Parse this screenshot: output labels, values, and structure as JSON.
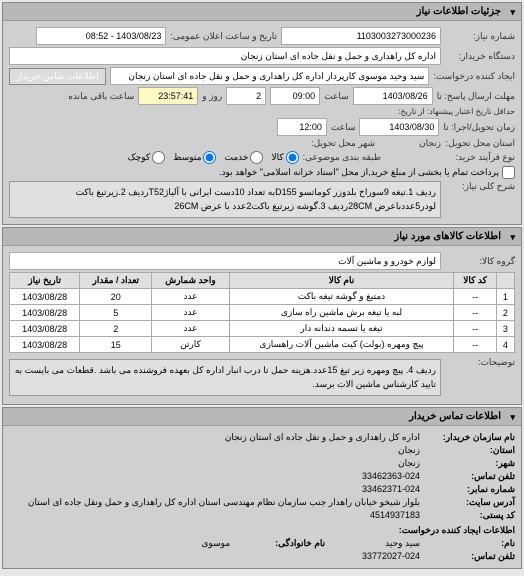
{
  "main_header": "جزئیات اطلاعات نیاز",
  "basic": {
    "req_num_label": "شماره نیاز:",
    "req_num": "1103003273000236",
    "announce_label": "تاریخ و ساعت اعلان عمومی:",
    "announce_value": "1403/08/23 - 08:52",
    "buyer_label": "دستگاه خریدار:",
    "buyer_value": "اداره کل راهداری و حمل و نقل جاده ای استان زنجان",
    "requester_label": "ایجاد کننده درخواست:",
    "requester_value": "سید وحید موسوی کارپرداز اداره کل راهداری و حمل و نقل جاده ای استان زنجان",
    "contact_btn": "اطلاعات تماس خریدار",
    "deadline_label": "مهلت ارسال پاسخ: تا",
    "deadline_date": "1403/08/26",
    "time_label": "ساعت",
    "deadline_time": "09:00",
    "days_label": "روز و",
    "days_value": "2",
    "remain_time": "23:57:41",
    "remain_label": "ساعت باقی مانده",
    "validity_label": "حداقل تاریخ اعتبار پیشنهاد: از تاریخ:",
    "delivery_label": "زمان تحویل/اجرا: تا",
    "delivery_date": "1403/08/30",
    "delivery_time": "12:00",
    "place_label": "استان محل تحویل:",
    "place_value": "زنجان",
    "city_label": "شهر محل تحویل:",
    "file_label": "نوع فرآيند خرید:",
    "doc_label": "طبقه بندی موضوعی:",
    "small_radio": "کوچک",
    "medium_radio": "متوسط",
    "large_radio": "کالا",
    "services_radio": "خدمت",
    "prepay_check": "پرداخت تمام یا بخشی از مبلغ خرید,از محل \"اسناد خزانه اسلامی\" خواهد بود.",
    "desc_label": "شرح کلی نیاز:",
    "desc_text": "ردیف 1.تیغه 9سوراخ بلدوزر کوماتسو D155به تعداد 10دست ایرانی با آلیاژT52ردیف 2.زیرتیغ باکت لودر5عددباعرض 28CMردیف 3.گوشه زیرتیغ باکت2عدد با عرض 26CM"
  },
  "goods_section": {
    "header": "اطلاعات کالاهای مورد نیاز",
    "group_label": "گروه کالا:",
    "group_value": "لوازم خودرو و ماشین آلات",
    "table": {
      "headers": [
        "",
        "کد کالا",
        "نام کالا",
        "واحد شمارش",
        "تعداد / مقدار",
        "تاریخ نیاز"
      ],
      "rows": [
        [
          "1",
          "--",
          "دمتیغ و گوشه تیغه باکت",
          "عدد",
          "20",
          "1403/08/28"
        ],
        [
          "2",
          "--",
          "لبه یا تیغه برش ماشین راه سازی",
          "عدد",
          "5",
          "1403/08/28"
        ],
        [
          "3",
          "--",
          "تیغه یا تسمه دندانه دار",
          "عدد",
          "2",
          "1403/08/28"
        ],
        [
          "4",
          "--",
          "پیچ ومهره (بولت) کیت ماشین آلات راهسازی",
          "کارتن",
          "15",
          "1403/08/28"
        ]
      ]
    },
    "notes_label": "توضیحات:",
    "notes_text": "ردیف 4. پیچ ومهره زیر تیغ 15عدد.هزینه حمل تا درب انبار اداره کل بعهده فروشنده می باشد .قطعات می بایست به تایید کارشناس ماشین الات برسد."
  },
  "contact_section": {
    "header": "اطلاعات تماس خریدار",
    "org_label": "نام سازمان خریدار:",
    "org_value": "اداره کل راهداری و حمل و نقل جاده ای استان زنجان",
    "province_label": "استان:",
    "province_value": "زنجان",
    "city_label": "شهر:",
    "city_value": "زنجان",
    "phone_label": "تلفن تماس:",
    "phone_value": "33462363-024",
    "fax_label": "شماره نمابر:",
    "fax_value": "33462371-024",
    "address_label": "آدرس سایت:",
    "address_value": "بلوار شیخو خیابان راهدار جنب سازمان نظام مهندسی استان اداره کل راهداری و حمل ونقل جاده ای استان",
    "postal_label": "کد پستی:",
    "postal_value": "4514937183",
    "creator_header": "اطلاعات ایجاد کننده درخواست:",
    "name_label": "نام:",
    "name_value": "سید وحید",
    "surname_label": "نام خانوادگی:",
    "surname_value": "موسوی",
    "contact_phone_label": "تلفن تماس:",
    "contact_phone_value": "33772027-024"
  }
}
